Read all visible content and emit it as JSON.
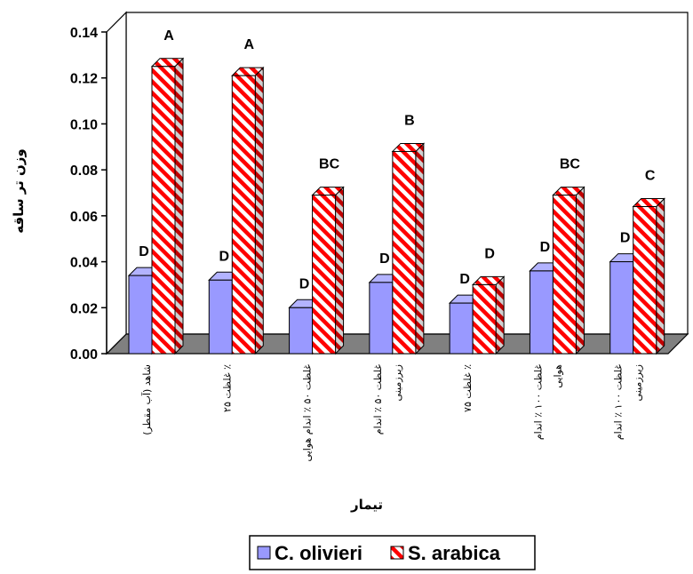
{
  "chart_data": {
    "type": "bar",
    "xlabel": "تیمار",
    "ylabel": "وزن تر ساقه",
    "ylim": [
      0,
      0.14
    ],
    "ytick_labels": [
      "0.00",
      "0.02",
      "0.04",
      "0.06",
      "0.08",
      "0.10",
      "0.12",
      "0.14"
    ],
    "grid": false,
    "legend_position": "bottom",
    "categories": [
      [
        "شاهد (آب مقطر)"
      ],
      [
        "غلظت ۲۵ ٪"
      ],
      [
        "غلظت ۵۰ ٪ اندام هوایی"
      ],
      [
        "غلظت ۵۰ ٪ اندام",
        "زیرزمینی"
      ],
      [
        "غلظت ۷۵ ٪"
      ],
      [
        "غلظت ۱۰۰ ٪ اندام",
        "هوایی"
      ],
      [
        "غلظت ۱۰۰ ٪ اندام",
        "زیرزمینی"
      ]
    ],
    "series": [
      {
        "name": "C. olivieri",
        "color": "#9999ff",
        "values": [
          0.034,
          0.032,
          0.02,
          0.031,
          0.022,
          0.036,
          0.04
        ],
        "labels": [
          "D",
          "D",
          "D",
          "D",
          "D",
          "D",
          "D"
        ]
      },
      {
        "name": "S. arabica",
        "color": "#ff0000",
        "pattern": "diagonal-stripes",
        "values": [
          0.125,
          0.121,
          0.069,
          0.088,
          0.03,
          0.069,
          0.064
        ],
        "labels": [
          "A",
          "A",
          "BC",
          "B",
          "D",
          "BC",
          "C"
        ]
      }
    ]
  }
}
